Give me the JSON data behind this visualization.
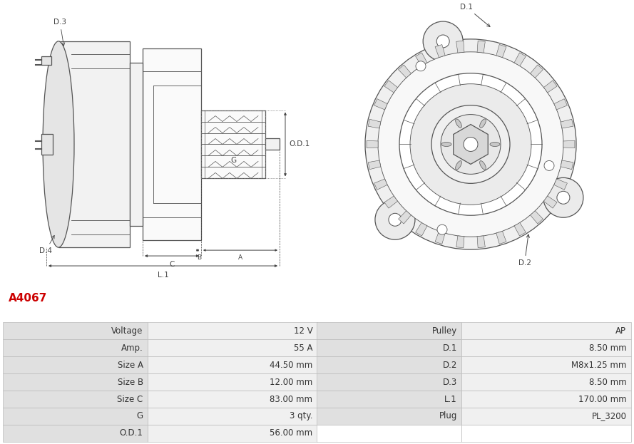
{
  "title": "A4067",
  "title_color": "#cc0000",
  "bg_color": "#ffffff",
  "table_data": [
    [
      "Voltage",
      "12 V",
      "Pulley",
      "AP"
    ],
    [
      "Amp.",
      "55 A",
      "D.1",
      "8.50 mm"
    ],
    [
      "Size A",
      "44.50 mm",
      "D.2",
      "M8x1.25 mm"
    ],
    [
      "Size B",
      "12.00 mm",
      "D.3",
      "8.50 mm"
    ],
    [
      "Size C",
      "83.00 mm",
      "L.1",
      "170.00 mm"
    ],
    [
      "G",
      "3 qty.",
      "Plug",
      "PL_3200"
    ],
    [
      "O.D.1",
      "56.00 mm",
      "",
      ""
    ]
  ],
  "label_bg": "#e0e0e0",
  "value_bg": "#f0f0f0",
  "empty_bg": "#ffffff",
  "border_color": "#bbbbbb",
  "text_color": "#333333",
  "font_size": 8.5,
  "line_color": "#555555"
}
